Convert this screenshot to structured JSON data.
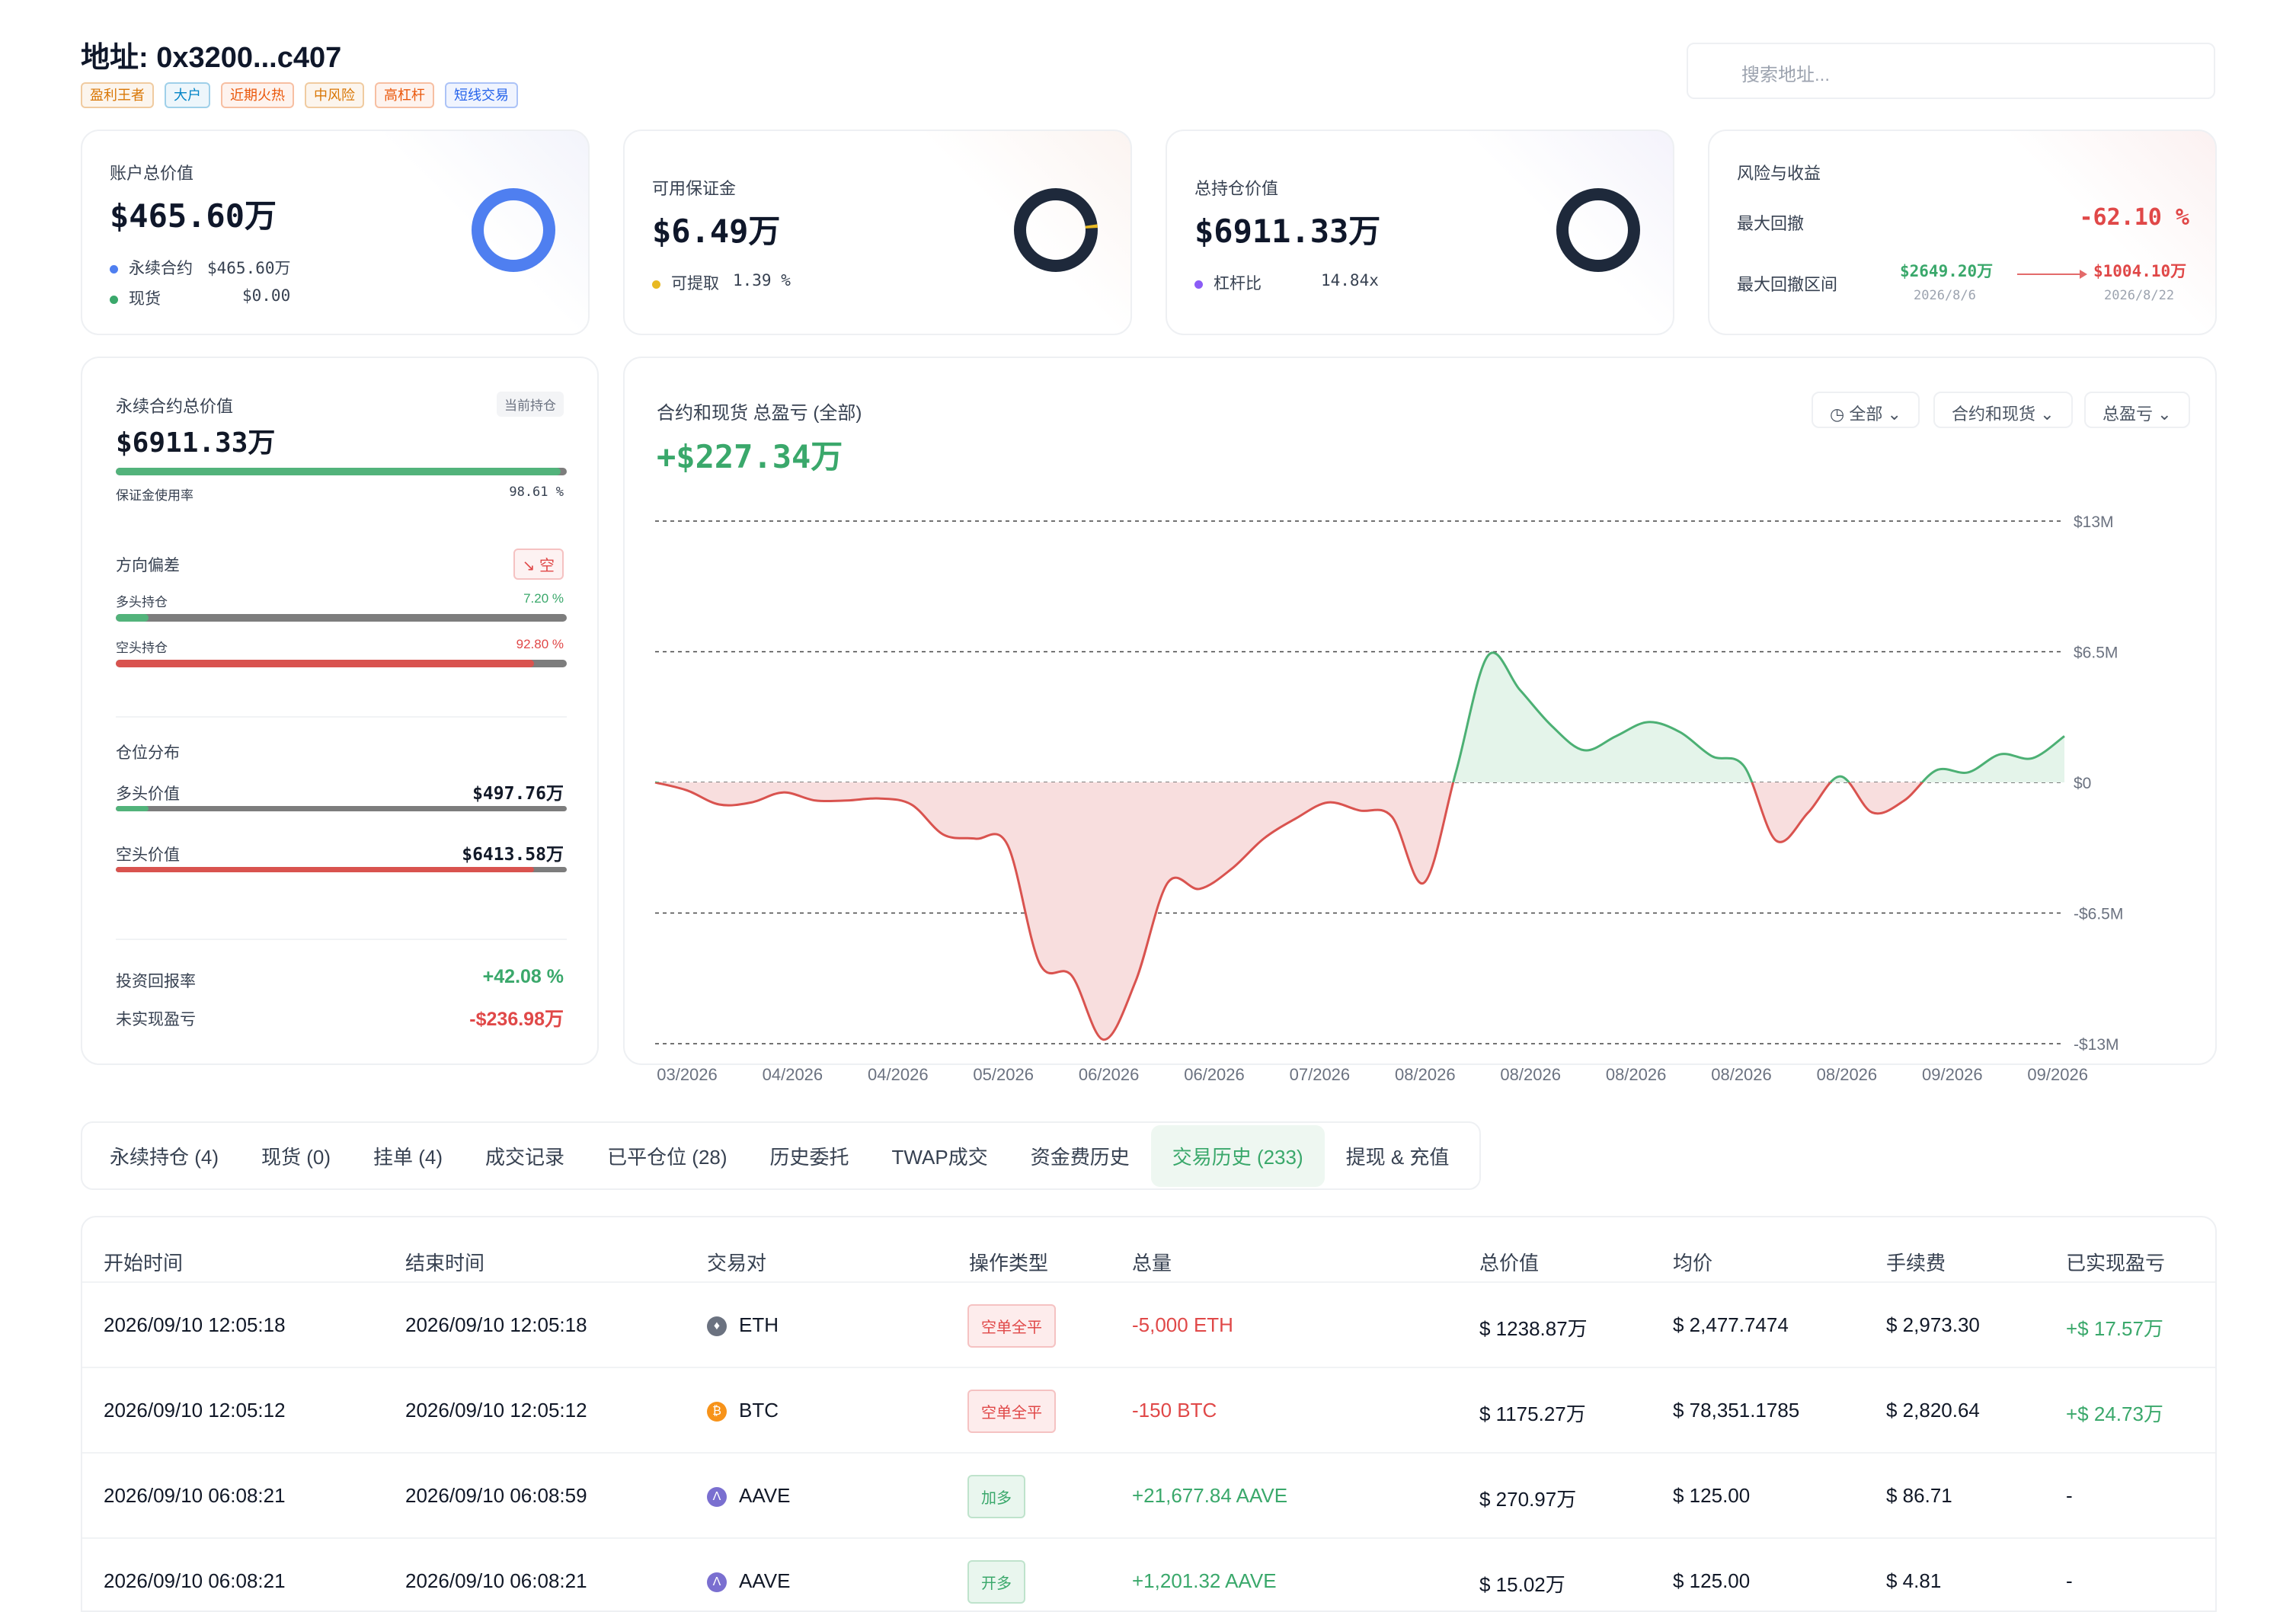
{
  "header": {
    "address_title": "地址: 0x3200...c407",
    "tags": [
      {
        "label": "盈利王者",
        "color": "#d97706"
      },
      {
        "label": "大户",
        "color": "#0284c7"
      },
      {
        "label": "近期火热",
        "color": "#ea580c"
      },
      {
        "label": "中风险",
        "color": "#d97706"
      },
      {
        "label": "高杠杆",
        "color": "#ea580c"
      },
      {
        "label": "短线交易",
        "color": "#2563eb"
      }
    ],
    "search_placeholder": "搜索地址..."
  },
  "summary_cards": {
    "account": {
      "label": "账户总价值",
      "value": "$465.60万",
      "perp_label": "永续合约",
      "perp_value": "$465.60万",
      "spot_label": "现货",
      "spot_value": "$0.00",
      "ring_color": "#4f7ff0",
      "perp_share": 1.0
    },
    "margin": {
      "label": "可用保证金",
      "value": "$6.49万",
      "withdraw_label": "可提取",
      "withdraw_value": "1.39 %",
      "withdraw_share": 0.0139
    },
    "position": {
      "label": "总持仓价值",
      "value": "$6911.33万",
      "leverage_label": "杠杆比",
      "leverage_value": "14.84x"
    },
    "risk": {
      "label": "风险与收益",
      "max_dd_label": "最大回撤",
      "max_dd_value": "-62.10 %",
      "range_label": "最大回撤区间",
      "range_start_value": "$2649.20万",
      "range_start_date": "2026/8/6",
      "range_end_value": "$1004.10万",
      "range_end_date": "2026/8/22"
    }
  },
  "perp_panel": {
    "title": "永续合约总价值",
    "badge": "当前持仓",
    "value": "$6911.33万",
    "margin_usage_label": "保证金使用率",
    "margin_usage_value": "98.61 %",
    "margin_usage": 0.9861,
    "direction_label": "方向偏差",
    "direction_value": "空",
    "long_label": "多头持仓",
    "long_pct": "7.20 %",
    "long_share": 0.072,
    "short_label": "空头持仓",
    "short_pct": "92.80 %",
    "short_share": 0.928,
    "distribution_label": "仓位分布",
    "long_value_label": "多头价值",
    "long_value": "$497.76万",
    "short_value_label": "空头价值",
    "short_value": "$6413.58万",
    "roi_label": "投资回报率",
    "roi_value": "+42.08 %",
    "upnl_label": "未实现盈亏",
    "upnl_value": "-$236.98万"
  },
  "pnl_chart": {
    "title": "合约和现货 总盈亏 (全部)",
    "total": "+$227.34万",
    "filters": [
      "全部",
      "合约和现货",
      "总盈亏"
    ]
  },
  "chart_data": {
    "type": "area",
    "title": "合约和现货 总盈亏 (全部)",
    "y_ticks": [
      "$13M",
      "$6.5M",
      "$0",
      "-$6.5M",
      "-$13M"
    ],
    "ylim": [
      -13,
      13
    ],
    "y_unit": "M USD",
    "x_ticks": [
      "03/2026",
      "04/2026",
      "04/2026",
      "05/2026",
      "06/2026",
      "06/2026",
      "07/2026",
      "08/2026",
      "08/2026",
      "08/2026",
      "08/2026",
      "08/2026",
      "09/2026",
      "09/2026"
    ],
    "values": [
      0,
      -0.4,
      -1.1,
      -1.0,
      -0.5,
      -0.9,
      -0.9,
      -0.8,
      -1.1,
      -2.6,
      -2.8,
      -3.1,
      -9.0,
      -9.6,
      -12.8,
      -9.9,
      -5.0,
      -5.3,
      -4.3,
      -2.8,
      -1.8,
      -1.0,
      -1.4,
      -1.7,
      -5.0,
      0.5,
      6.3,
      4.6,
      2.8,
      1.6,
      2.3,
      3.0,
      2.5,
      1.3,
      0.8,
      -2.9,
      -1.5,
      0.3,
      -1.5,
      -0.9,
      0.6,
      0.5,
      1.4,
      1.2,
      2.3
    ]
  },
  "tabs": [
    {
      "label": "永续持仓 (4)",
      "active": false
    },
    {
      "label": "现货 (0)",
      "active": false
    },
    {
      "label": "挂单 (4)",
      "active": false
    },
    {
      "label": "成交记录",
      "active": false
    },
    {
      "label": "已平仓位 (28)",
      "active": false
    },
    {
      "label": "历史委托",
      "active": false
    },
    {
      "label": "TWAP成交",
      "active": false
    },
    {
      "label": "资金费历史",
      "active": false
    },
    {
      "label": "交易历史 (233)",
      "active": true
    },
    {
      "label": "提现 & 充值",
      "active": false
    }
  ],
  "table": {
    "headers": [
      "开始时间",
      "结束时间",
      "交易对",
      "操作类型",
      "总量",
      "总价值",
      "均价",
      "手续费",
      "已实现盈亏"
    ],
    "rows": [
      {
        "start": "2026/09/10 12:05:18",
        "end": "2026/09/10 12:05:18",
        "pair": "ETH",
        "coin_icon": "eth-icon",
        "coin_color": "#6b7280",
        "action": "空单全平",
        "action_tone": "red",
        "amount": "-5,000 ETH",
        "amount_tone": "red",
        "value": "$ 1238.87万",
        "avg": "$ 2,477.7474",
        "fee": "$ 2,973.30",
        "pnl": "+$ 17.57万"
      },
      {
        "start": "2026/09/10 12:05:12",
        "end": "2026/09/10 12:05:12",
        "pair": "BTC",
        "coin_icon": "btc-icon",
        "coin_color": "#f7931a",
        "action": "空单全平",
        "action_tone": "red",
        "amount": "-150 BTC",
        "amount_tone": "red",
        "value": "$ 1175.27万",
        "avg": "$ 78,351.1785",
        "fee": "$ 2,820.64",
        "pnl": "+$ 24.73万"
      },
      {
        "start": "2026/09/10 06:08:21",
        "end": "2026/09/10 06:08:59",
        "pair": "AAVE",
        "coin_icon": "aave-icon",
        "coin_color": "#7a6fd0",
        "action": "加多",
        "action_tone": "green",
        "amount": "+21,677.84 AAVE",
        "amount_tone": "green",
        "value": "$ 270.97万",
        "avg": "$ 125.00",
        "fee": "$ 86.71",
        "pnl": "-"
      },
      {
        "start": "2026/09/10 06:08:21",
        "end": "2026/09/10 06:08:21",
        "pair": "AAVE",
        "coin_icon": "aave-icon",
        "coin_color": "#7a6fd0",
        "action": "开多",
        "action_tone": "green",
        "amount": "+1,201.32 AAVE",
        "amount_tone": "green",
        "value": "$ 15.02万",
        "avg": "$ 125.00",
        "fee": "$ 4.81",
        "pnl": "-"
      }
    ]
  }
}
